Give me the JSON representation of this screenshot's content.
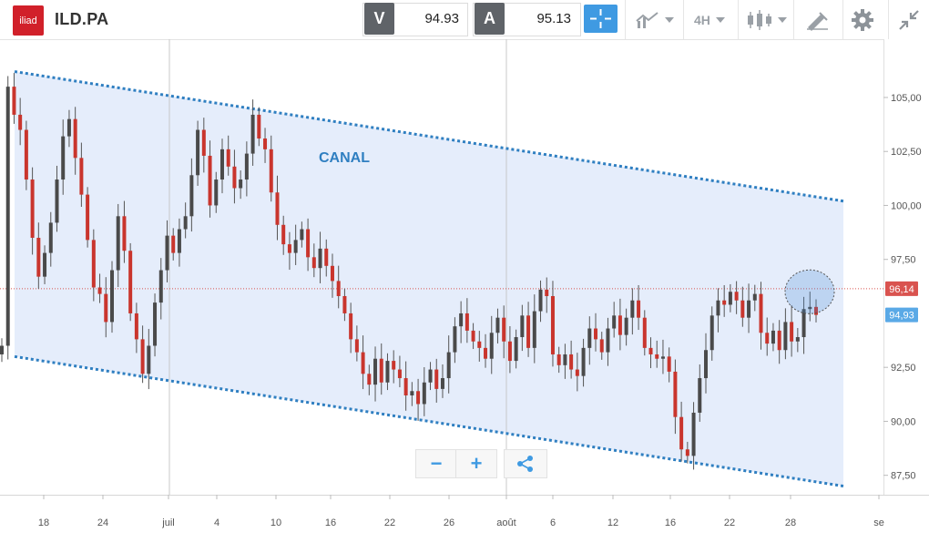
{
  "header": {
    "logo_text": "iliad",
    "symbol": "ILD.PA",
    "sell": {
      "label": "V",
      "price": "94.93"
    },
    "buy": {
      "label": "A",
      "price": "95.13"
    },
    "timeframe": "4H",
    "icons": [
      "crosshair-icon",
      "line-chart-icon",
      "candlestick-icon",
      "drawing-tool-icon",
      "gear-icon",
      "collapse-icon"
    ]
  },
  "chart_data": {
    "type": "candlestick",
    "annotation": "CANAL",
    "ylim": [
      86.6,
      107.7
    ],
    "y_ticks": [
      "105,00",
      "102,50",
      "100,00",
      "97,50",
      "92,50",
      "90,00",
      "87,50"
    ],
    "y_tick_values": [
      105.0,
      102.5,
      100.0,
      97.5,
      92.5,
      90.0,
      87.5
    ],
    "x_ticks": [
      "18",
      "24",
      "juil",
      "4",
      "10",
      "16",
      "22",
      "26",
      "août",
      "6",
      "12",
      "16",
      "22",
      "28",
      "se"
    ],
    "reference_lines": [
      {
        "label": "96,14",
        "value": 96.14,
        "color": "#d9534f"
      },
      {
        "label": "94,93",
        "value": 94.93,
        "color": "#5aa9e6"
      }
    ],
    "channel": {
      "upper": {
        "start": 106.2,
        "end": 100.2
      },
      "lower": {
        "start": 93.0,
        "end": 87.0
      }
    },
    "closes": [
      93.5,
      105.5,
      104.2,
      103.5,
      101.2,
      98.5,
      96.7,
      97.8,
      99.2,
      101.2,
      103.2,
      104.0,
      102.2,
      100.5,
      98.4,
      96.2,
      95.9,
      94.6,
      97.0,
      99.5,
      97.9,
      95.0,
      93.8,
      92.2,
      93.5,
      95.5,
      97.0,
      98.6,
      97.8,
      98.9,
      99.5,
      101.4,
      103.5,
      102.3,
      100.0,
      101.2,
      102.6,
      101.8,
      100.8,
      101.2,
      102.4,
      104.2,
      103.1,
      102.6,
      100.6,
      99.1,
      98.2,
      97.8,
      98.4,
      98.9,
      97.6,
      97.1,
      98.0,
      97.2,
      96.5,
      95.8,
      95.0,
      93.8,
      93.2,
      92.2,
      91.7,
      92.9,
      91.8,
      92.8,
      92.4,
      92.0,
      91.2,
      91.4,
      90.8,
      91.8,
      92.4,
      91.5,
      92.0,
      93.2,
      94.4,
      95.0,
      94.2,
      93.7,
      93.4,
      92.9,
      94.1,
      94.8,
      93.7,
      92.8,
      93.9,
      94.9,
      93.4,
      95.1,
      96.1,
      95.8,
      93.1,
      92.6,
      93.1,
      92.4,
      92.1,
      93.4,
      94.3,
      93.8,
      93.2,
      94.3,
      94.9,
      94.0,
      94.8,
      95.6,
      94.8,
      93.4,
      93.1,
      92.9,
      93.0,
      92.3,
      90.2,
      88.7,
      88.4,
      90.4,
      92.0,
      93.3,
      94.9,
      95.6,
      95.4,
      96.0,
      95.6,
      94.8,
      95.6,
      95.9,
      94.1,
      93.6,
      94.2,
      93.3,
      94.6,
      93.7,
      93.9,
      95.2,
      95.3,
      94.93
    ]
  }
}
